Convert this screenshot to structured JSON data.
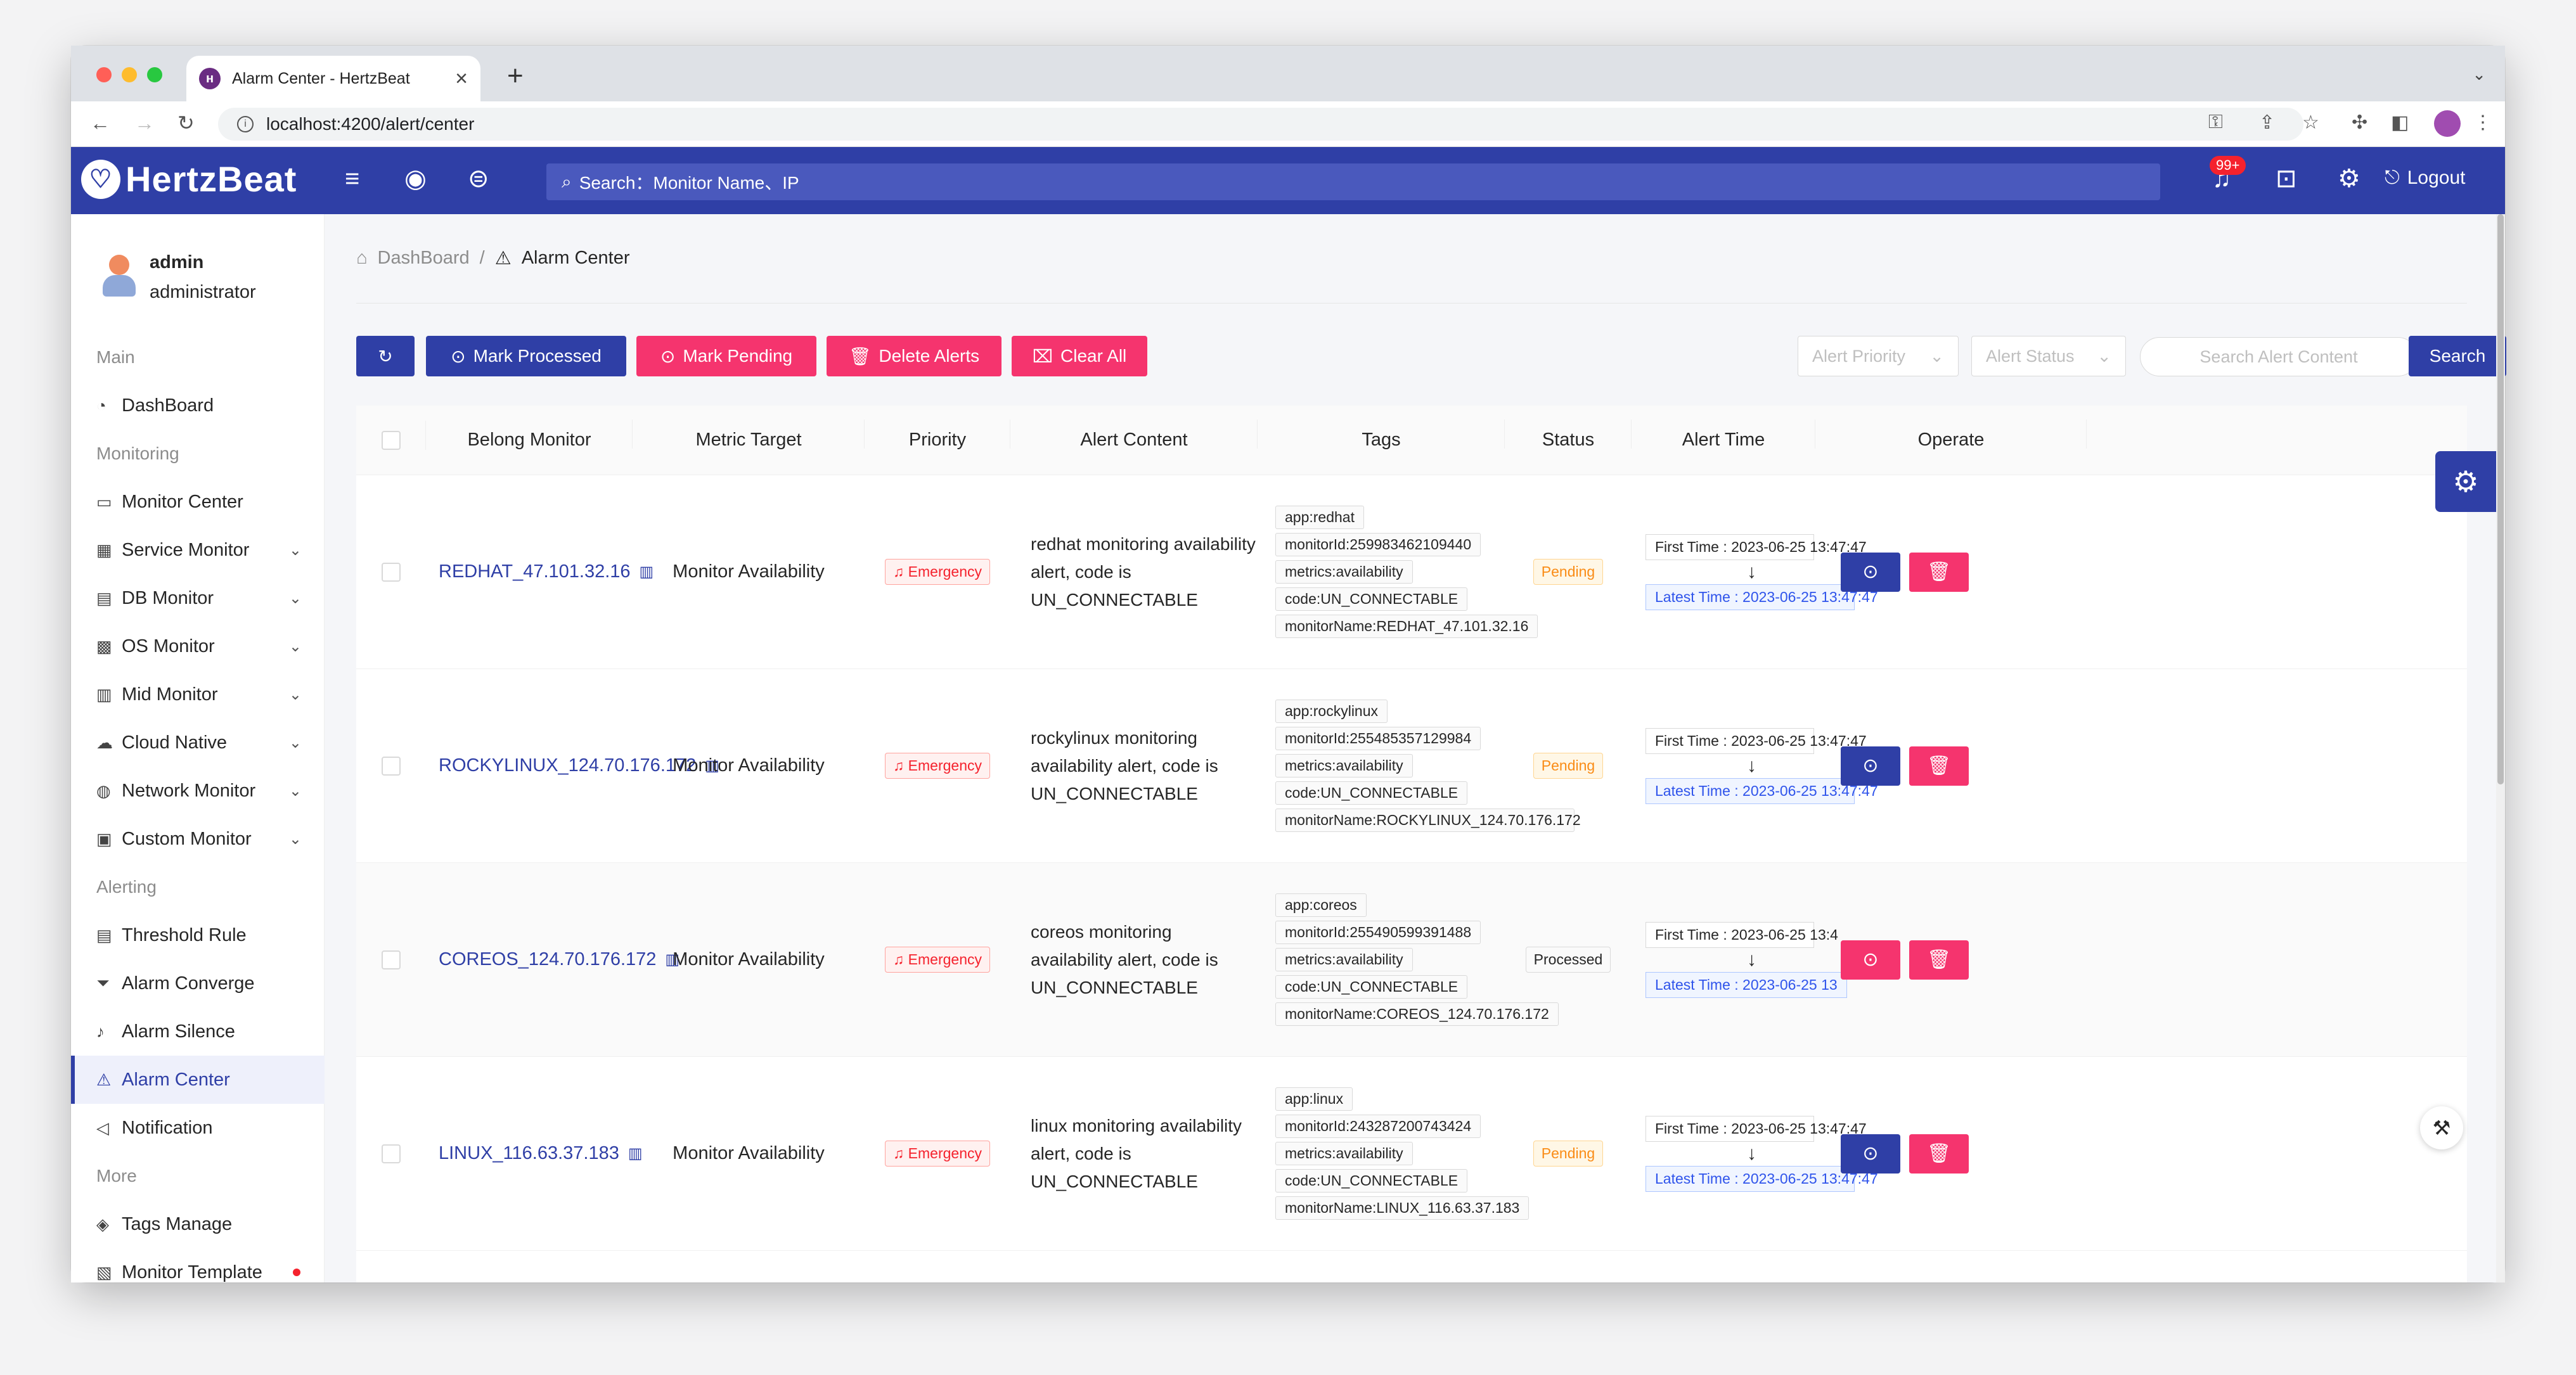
{
  "browser": {
    "tab_title": "Alarm Center - HertzBeat",
    "url": "localhost:4200/alert/center"
  },
  "app": {
    "logo": "HertzBeat",
    "search_placeholder": "Search：Monitor Name、IP",
    "notify_badge": "99+",
    "logout": "Logout"
  },
  "user": {
    "name": "admin",
    "role": "administrator"
  },
  "sidebar": [
    {
      "type": "group",
      "label": "Main"
    },
    {
      "type": "item",
      "label": "DashBoard",
      "icon": "dashboard-icon",
      "glyph": "◔"
    },
    {
      "type": "group",
      "label": "Monitoring"
    },
    {
      "type": "item",
      "label": "Monitor Center",
      "icon": "laptop-icon",
      "glyph": "▭"
    },
    {
      "type": "item",
      "label": "Service Monitor",
      "icon": "appstore-icon",
      "glyph": "▦",
      "chevron": true
    },
    {
      "type": "item",
      "label": "DB Monitor",
      "icon": "database-icon",
      "glyph": "▤",
      "chevron": true
    },
    {
      "type": "item",
      "label": "OS Monitor",
      "icon": "windows-icon",
      "glyph": "▩",
      "chevron": true
    },
    {
      "type": "item",
      "label": "Mid Monitor",
      "icon": "block-icon",
      "glyph": "▥",
      "chevron": true
    },
    {
      "type": "item",
      "label": "Cloud Native",
      "icon": "cloud-icon",
      "glyph": "☁",
      "chevron": true
    },
    {
      "type": "item",
      "label": "Network Monitor",
      "icon": "global-icon",
      "glyph": "◍",
      "chevron": true
    },
    {
      "type": "item",
      "label": "Custom Monitor",
      "icon": "custom-icon",
      "glyph": "▣",
      "chevron": true
    },
    {
      "type": "group",
      "label": "Alerting"
    },
    {
      "type": "item",
      "label": "Threshold Rule",
      "icon": "rule-icon",
      "glyph": "▤"
    },
    {
      "type": "item",
      "label": "Alarm Converge",
      "icon": "filter-icon",
      "glyph": "⏷"
    },
    {
      "type": "item",
      "label": "Alarm Silence",
      "icon": "mute-icon",
      "glyph": "♪"
    },
    {
      "type": "item",
      "label": "Alarm Center",
      "icon": "alert-icon",
      "glyph": "⚠",
      "active": true
    },
    {
      "type": "item",
      "label": "Notification",
      "icon": "notification-icon",
      "glyph": "◁"
    },
    {
      "type": "group",
      "label": "More"
    },
    {
      "type": "item",
      "label": "Tags Manage",
      "icon": "tag-icon",
      "glyph": "◈"
    },
    {
      "type": "item",
      "label": "Monitor Template",
      "icon": "template-icon",
      "glyph": "▧",
      "dot": true
    }
  ],
  "breadcrumb": {
    "home": "DashBoard",
    "separator": "/",
    "current": "Alarm Center"
  },
  "toolbar": {
    "mark_processed": "Mark Processed",
    "mark_pending": "Mark Pending",
    "delete_alerts": "Delete Alerts",
    "clear_all": "Clear All",
    "priority_placeholder": "Alert Priority",
    "status_placeholder": "Alert Status",
    "content_placeholder": "Search Alert Content",
    "search": "Search"
  },
  "table": {
    "columns": [
      "Belong Monitor",
      "Metric Target",
      "Priority",
      "Alert Content",
      "Tags",
      "Status",
      "Alert Time",
      "Operate"
    ],
    "rows": [
      {
        "monitor": "REDHAT_47.101.32.16",
        "metric": "Monitor Availability",
        "priority": "Emergency",
        "content": "redhat monitoring availability alert, code is UN_CONNECTABLE",
        "tags": [
          "app:redhat",
          "monitorId:259983462109440",
          "metrics:availability",
          "code:UN_CONNECTABLE",
          "monitorName:REDHAT_47.101.32.16"
        ],
        "status": "Pending",
        "first_time": "First Time : 2023-06-25 13:47:47",
        "latest_time": "Latest Time : 2023-06-25 13:47:47"
      },
      {
        "monitor": "ROCKYLINUX_124.70.176.172",
        "metric": "Monitor Availability",
        "priority": "Emergency",
        "content": "rockylinux monitoring availability alert, code is UN_CONNECTABLE",
        "tags": [
          "app:rockylinux",
          "monitorId:255485357129984",
          "metrics:availability",
          "code:UN_CONNECTABLE",
          "monitorName:ROCKYLINUX_124.70.176.172"
        ],
        "status": "Pending",
        "first_time": "First Time : 2023-06-25 13:47:47",
        "latest_time": "Latest Time : 2023-06-25 13:47:47"
      },
      {
        "monitor": "COREOS_124.70.176.172",
        "metric": "Monitor Availability",
        "priority": "Emergency",
        "content": "coreos monitoring availability alert, code is UN_CONNECTABLE",
        "tags": [
          "app:coreos",
          "monitorId:255490599391488",
          "metrics:availability",
          "code:UN_CONNECTABLE",
          "monitorName:COREOS_124.70.176.172"
        ],
        "status": "Processed",
        "first_time": "First Time : 2023-06-25 13:4",
        "latest_time": "Latest Time : 2023-06-25 13",
        "alt": true
      },
      {
        "monitor": "LINUX_116.63.37.183",
        "metric": "Monitor Availability",
        "priority": "Emergency",
        "content": "linux monitoring availability alert, code is UN_CONNECTABLE",
        "tags": [
          "app:linux",
          "monitorId:243287200743424",
          "metrics:availability",
          "code:UN_CONNECTABLE",
          "monitorName:LINUX_116.63.37.183"
        ],
        "status": "Pending",
        "first_time": "First Time : 2023-06-25 13:47:47",
        "latest_time": "Latest Time : 2023-06-25 13:47:47"
      }
    ]
  }
}
